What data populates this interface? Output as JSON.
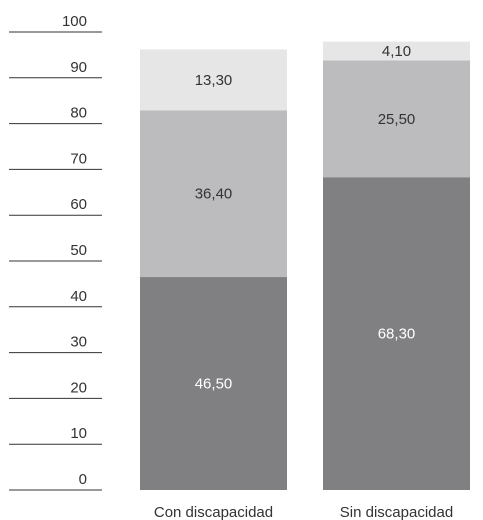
{
  "chart_data": {
    "type": "bar",
    "stacked": true,
    "categories": [
      "Con discapacidad",
      "Sin discapacidad"
    ],
    "series": [
      {
        "values": [
          46.5,
          68.3
        ],
        "labels": [
          "46,50",
          "68,30"
        ],
        "color": "#808083"
      },
      {
        "values": [
          36.4,
          25.5
        ],
        "labels": [
          "36,40",
          "25,50"
        ],
        "color": "#bcbcbe"
      },
      {
        "values": [
          13.3,
          4.1
        ],
        "labels": [
          "13,30",
          "4,10"
        ],
        "color": "#e6e6e7"
      }
    ],
    "label_colors": [
      "#ffffff",
      "#333333",
      "#333333"
    ],
    "yticks": [
      "0",
      "10",
      "20",
      "30",
      "40",
      "50",
      "60",
      "70",
      "80",
      "90",
      "100"
    ],
    "ylim": [
      0,
      100
    ],
    "grid": false,
    "legend": "none"
  }
}
